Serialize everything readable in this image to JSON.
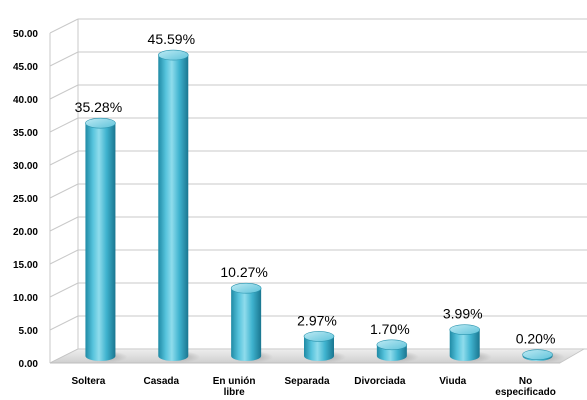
{
  "chart_data": {
    "type": "bar",
    "style": "3d-cylinder",
    "categories": [
      [
        "Soltera"
      ],
      [
        "Casada"
      ],
      [
        "En unión",
        "libre"
      ],
      [
        "Separada"
      ],
      [
        "Divorciada"
      ],
      [
        "Viuda"
      ],
      [
        "No",
        "especificado"
      ]
    ],
    "values": [
      35.28,
      45.59,
      10.27,
      2.97,
      1.7,
      3.99,
      0.2
    ],
    "data_labels": [
      "35.28%",
      "45.59%",
      "10.27%",
      "2.97%",
      "1.70%",
      "3.99%",
      "0.20%"
    ],
    "y_ticks": [
      "0.00",
      "5.00",
      "10.00",
      "15.00",
      "20.00",
      "25.00",
      "30.00",
      "35.00",
      "40.00",
      "45.00",
      "50.00"
    ],
    "ylim": [
      0,
      50
    ],
    "grid": true,
    "legend": "none",
    "colors": {
      "bar_light": "#7fd3e6",
      "bar_mid": "#38b4cf",
      "bar_dark": "#1c7e98",
      "bar_top": "#9fe0ee",
      "grid": "#c9c9c9",
      "floor": "#d9d9d9",
      "shadow": "#bfbfbf"
    }
  }
}
